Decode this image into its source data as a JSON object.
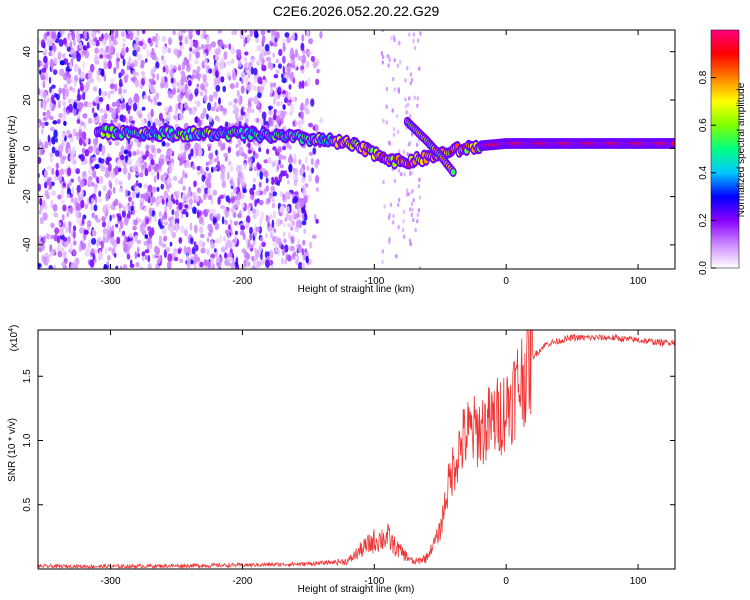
{
  "title": "C2E6.2026.052.20.22.G29",
  "chart_data": [
    {
      "type": "heatmap",
      "title": "C2E6.2026.052.20.22.G29",
      "xlabel": "Height of straight line (km)",
      "ylabel": "Frequency (Hz)",
      "xlim": [
        -355,
        128
      ],
      "ylim": [
        -50,
        49
      ],
      "xticks": [
        -300,
        -200,
        -100,
        0,
        100
      ],
      "yticks": [
        -40,
        -20,
        0,
        20,
        40
      ],
      "xtick_labels": [
        "-300",
        "-200",
        "-100",
        "0",
        "100"
      ],
      "ytick_labels": [
        "-40",
        "-20",
        "0",
        "20",
        "40"
      ],
      "colorbar": {
        "label": "Normalized spectral amplitude",
        "range": [
          0,
          1
        ],
        "ticks": [
          0.0,
          0.2,
          0.4,
          0.6,
          0.8
        ],
        "tick_labels": [
          "0.0",
          "0.2",
          "0.4",
          "0.6",
          "0.8"
        ],
        "colors": [
          "#ffffff",
          "#cc88ff",
          "#8800ff",
          "#0000ff",
          "#00c8ff",
          "#00ff80",
          "#80ff00",
          "#ffff00",
          "#ff8000",
          "#ff0000",
          "#ff0080"
        ]
      },
      "ridge": {
        "description": "dominant frequency trace",
        "points": [
          [
            -310,
            7
          ],
          [
            -250,
            6
          ],
          [
            -200,
            6
          ],
          [
            -150,
            4
          ],
          [
            -120,
            2
          ],
          [
            -100,
            -2
          ],
          [
            -80,
            -6
          ],
          [
            -60,
            -4
          ],
          [
            -40,
            -1
          ],
          [
            -20,
            1
          ],
          [
            0,
            2
          ],
          [
            50,
            2
          ],
          [
            128,
            2
          ]
        ],
        "branch": [
          [
            -75,
            11
          ],
          [
            -60,
            3
          ],
          [
            -50,
            -3
          ],
          [
            -40,
            -10
          ]
        ]
      }
    },
    {
      "type": "line",
      "xlabel": "Height of straight line (km)",
      "ylabel": "SNR (10 * v/v)",
      "scale_label": "(x10",
      "scale_exponent": "4",
      "xlim": [
        -355,
        128
      ],
      "ylim": [
        0,
        18600
      ],
      "xticks": [
        -300,
        -200,
        -100,
        0,
        100
      ],
      "yticks": [
        5000,
        10000,
        15000
      ],
      "xtick_labels": [
        "-300",
        "-200",
        "-100",
        "0",
        "100"
      ],
      "ytick_labels": [
        "0.5",
        "1.0",
        "1.5"
      ],
      "color": "#ee3333",
      "series": [
        {
          "name": "SNR",
          "x": [
            -355,
            -300,
            -250,
            -200,
            -150,
            -120,
            -110,
            -100,
            -90,
            -85,
            -70,
            -60,
            -50,
            -45,
            -40,
            -35,
            -30,
            -20,
            -10,
            0,
            10,
            20,
            30,
            50,
            80,
            100,
            120,
            128
          ],
          "y": [
            200,
            200,
            250,
            300,
            400,
            600,
            1500,
            2200,
            2500,
            1800,
            500,
            900,
            3000,
            6000,
            8000,
            9500,
            10500,
            10800,
            11500,
            12500,
            14500,
            16500,
            17500,
            18000,
            18000,
            17800,
            17600,
            17700
          ]
        }
      ]
    }
  ]
}
